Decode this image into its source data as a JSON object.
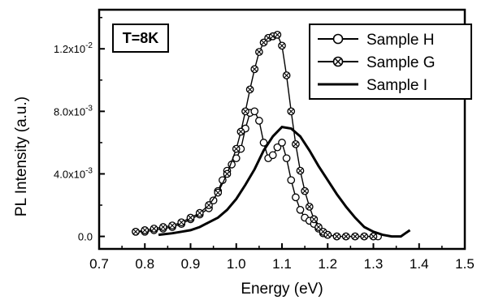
{
  "chart_data": {
    "type": "scatter",
    "title": "",
    "xlabel": "Energy (eV)",
    "ylabel": "PL Intensity (a.u.)",
    "xlim": [
      0.7,
      1.5
    ],
    "ylim": [
      -0.0008,
      0.0145
    ],
    "x_ticks": [
      0.7,
      0.8,
      0.9,
      1.0,
      1.1,
      1.2,
      1.3,
      1.4,
      1.5
    ],
    "x_tick_labels": [
      "0.7",
      "0.8",
      "0.9",
      "1.0",
      "1.1",
      "1.2",
      "1.3",
      "1.4",
      "1.5"
    ],
    "y_ticks": [
      0.0,
      0.004,
      0.008,
      0.012
    ],
    "y_tick_labels": [
      "0.0",
      "4.0x10-3",
      "8.0x10-3",
      "1.2x10-2"
    ],
    "annotation": "T=8K",
    "legend": {
      "position": "top-right"
    },
    "series": [
      {
        "name": "Sample H",
        "style": "line-open-circle",
        "x": [
          0.78,
          0.8,
          0.82,
          0.84,
          0.86,
          0.88,
          0.9,
          0.92,
          0.94,
          0.95,
          0.96,
          0.97,
          0.98,
          0.99,
          1.0,
          1.01,
          1.02,
          1.03,
          1.04,
          1.05,
          1.06,
          1.07,
          1.08,
          1.09,
          1.1,
          1.11,
          1.12,
          1.13,
          1.14,
          1.15,
          1.16,
          1.17,
          1.18,
          1.19,
          1.2,
          1.22,
          1.24,
          1.26,
          1.28,
          1.3,
          1.31
        ],
        "values": [
          0.0003,
          0.0003,
          0.0004,
          0.0005,
          0.0006,
          0.0008,
          0.0011,
          0.0014,
          0.0018,
          0.0023,
          0.0029,
          0.0036,
          0.0042,
          0.0046,
          0.005,
          0.0056,
          0.0069,
          0.0079,
          0.008,
          0.0074,
          0.006,
          0.005,
          0.0052,
          0.0057,
          0.006,
          0.005,
          0.0036,
          0.0025,
          0.0017,
          0.0012,
          0.001,
          0.0008,
          0.0005,
          0.0002,
          0.0001,
          0.0,
          0.0,
          0.0,
          0.0,
          0.0,
          0.0
        ]
      },
      {
        "name": "Sample G",
        "style": "line-crossed-circle",
        "x": [
          0.78,
          0.8,
          0.82,
          0.84,
          0.86,
          0.88,
          0.9,
          0.92,
          0.94,
          0.96,
          0.98,
          1.0,
          1.01,
          1.02,
          1.03,
          1.04,
          1.05,
          1.06,
          1.07,
          1.08,
          1.09,
          1.1,
          1.11,
          1.12,
          1.13,
          1.14,
          1.15,
          1.16,
          1.17,
          1.18,
          1.19,
          1.2,
          1.22,
          1.24,
          1.26,
          1.28,
          1.3
        ],
        "values": [
          0.0003,
          0.0004,
          0.0005,
          0.0006,
          0.0007,
          0.0009,
          0.0012,
          0.0015,
          0.002,
          0.0028,
          0.004,
          0.0056,
          0.0067,
          0.008,
          0.0094,
          0.0107,
          0.0118,
          0.0124,
          0.0127,
          0.0128,
          0.0129,
          0.0122,
          0.0103,
          0.008,
          0.0059,
          0.0042,
          0.0029,
          0.0019,
          0.0011,
          0.0006,
          0.0003,
          0.0001,
          0.0,
          0.0,
          0.0,
          0.0,
          0.0
        ]
      },
      {
        "name": "Sample I",
        "style": "solid-line",
        "x": [
          0.83,
          0.86,
          0.88,
          0.9,
          0.92,
          0.94,
          0.96,
          0.98,
          1.0,
          1.02,
          1.04,
          1.06,
          1.08,
          1.1,
          1.12,
          1.14,
          1.16,
          1.18,
          1.2,
          1.22,
          1.24,
          1.26,
          1.28,
          1.3,
          1.32,
          1.34,
          1.36,
          1.37,
          1.38
        ],
        "values": [
          0.0001,
          0.0002,
          0.0003,
          0.0004,
          0.0006,
          0.0009,
          0.0012,
          0.0017,
          0.0024,
          0.0033,
          0.0043,
          0.0055,
          0.0064,
          0.007,
          0.0069,
          0.0064,
          0.0055,
          0.0045,
          0.0036,
          0.0027,
          0.0019,
          0.0012,
          0.0006,
          0.0003,
          0.0001,
          0.0,
          0.0,
          0.0002,
          0.0004
        ]
      }
    ]
  }
}
